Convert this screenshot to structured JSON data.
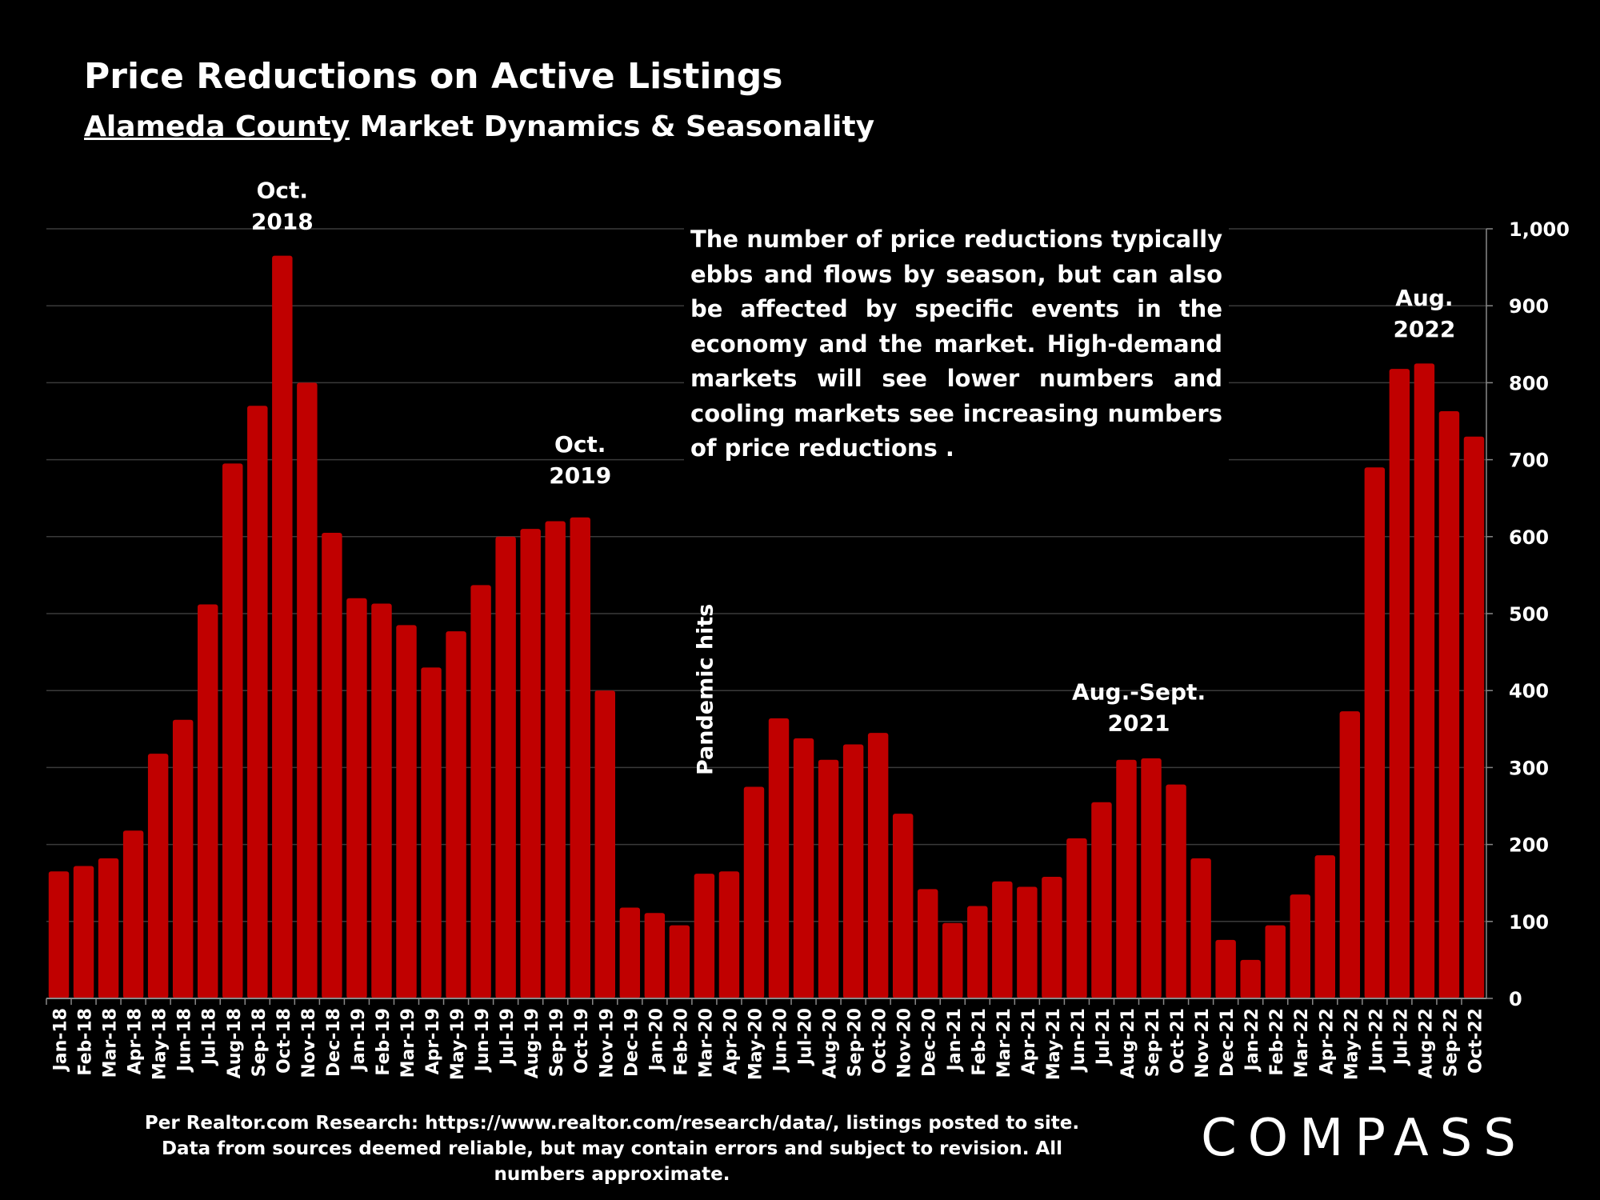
{
  "header": {
    "title": "Price Reductions on Active Listings",
    "subtitle_county": "Alameda County",
    "subtitle_rest": " Market Dynamics & Seasonality"
  },
  "note": "The number of price reductions typically ebbs and flows by season, but can also be affected by specific events in the economy and the market. High-demand markets will see lower numbers and cooling markets see increasing numbers of price reductions .",
  "source": "Per Realtor.com Research:  https://www.realtor.com/research/data/, listings posted to site. Data from sources deemed reliable, but may contain errors and subject to revision. All numbers approximate.",
  "logo_text": "COMPASS",
  "colors": {
    "bar": "#c00000",
    "background": "#000000",
    "text": "#ffffff",
    "grid": "#3a3a3a"
  },
  "chart_data": {
    "type": "bar",
    "title": "",
    "xlabel": "",
    "ylabel": "",
    "ylim": [
      0,
      1000
    ],
    "yticks": [
      "0",
      "100",
      "200",
      "300",
      "400",
      "500",
      "600",
      "700",
      "800",
      "900",
      "1,000"
    ],
    "grid": true,
    "categories": [
      "Jan-18",
      "Feb-18",
      "Mar-18",
      "Apr-18",
      "May-18",
      "Jun-18",
      "Jul-18",
      "Aug-18",
      "Sep-18",
      "Oct-18",
      "Nov-18",
      "Dec-18",
      "Jan-19",
      "Feb-19",
      "Mar-19",
      "Apr-19",
      "May-19",
      "Jun-19",
      "Jul-19",
      "Aug-19",
      "Sep-19",
      "Oct-19",
      "Nov-19",
      "Dec-19",
      "Jan-20",
      "Feb-20",
      "Mar-20",
      "Apr-20",
      "May-20",
      "Jun-20",
      "Jul-20",
      "Aug-20",
      "Sep-20",
      "Oct-20",
      "Nov-20",
      "Dec-20",
      "Jan-21",
      "Feb-21",
      "Mar-21",
      "Apr-21",
      "May-21",
      "Jun-21",
      "Jul-21",
      "Aug-21",
      "Sep-21",
      "Oct-21",
      "Nov-21",
      "Dec-21",
      "Jan-22",
      "Feb-22",
      "Mar-22",
      "Apr-22",
      "May-22",
      "Jun-22",
      "Jul-22",
      "Aug-22",
      "Sep-22",
      "Oct-22"
    ],
    "values": [
      165,
      172,
      182,
      218,
      318,
      362,
      512,
      695,
      770,
      965,
      800,
      605,
      520,
      513,
      485,
      430,
      477,
      537,
      600,
      610,
      620,
      625,
      400,
      118,
      111,
      95,
      162,
      165,
      275,
      364,
      338,
      310,
      330,
      345,
      240,
      142,
      98,
      120,
      152,
      145,
      158,
      208,
      255,
      310,
      312,
      278,
      182,
      76,
      50,
      95,
      135,
      186,
      373,
      690,
      818,
      825,
      763,
      730
    ],
    "annotations": [
      {
        "text": [
          "Oct.",
          "2018"
        ],
        "category": "Oct-18",
        "value": 1040
      },
      {
        "text": [
          "Oct.",
          "2019"
        ],
        "category": "Oct-19",
        "value": 710
      },
      {
        "text": [
          "Aug.",
          "2022"
        ],
        "category": "Aug-22",
        "value": 900
      },
      {
        "text": [
          "Aug.-Sept.",
          "2021"
        ],
        "category": "Aug-21",
        "value": 388,
        "offset": 0.5
      },
      {
        "text": [
          "Pandemic hits"
        ],
        "category": "Mar-20",
        "value": 290,
        "rotate": true
      }
    ]
  }
}
